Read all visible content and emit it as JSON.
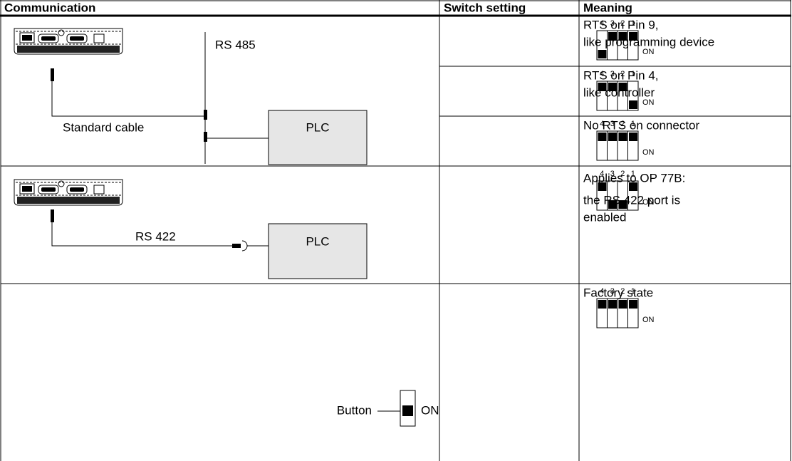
{
  "header": [
    "Communication",
    "Switch setting",
    "Meaning"
  ],
  "diagrams": [
    {
      "bus": "RS 485",
      "cable": "Standard cable",
      "plc": "PLC"
    },
    {
      "cable": "RS 422",
      "plc": "PLC"
    },
    {
      "button": "Button",
      "on": "ON"
    }
  ],
  "rows": [
    {
      "switch": {
        "numbers": [
          "4",
          "3",
          "2",
          "1"
        ],
        "on": "ON"
      },
      "meaning": [
        "RTS on Pin 9,",
        "like programming device"
      ]
    },
    {
      "switch": {
        "numbers": [
          "4",
          "3",
          "2",
          "1"
        ],
        "on": "ON"
      },
      "meaning": [
        "RTS on Pin 4,",
        "like controller"
      ]
    },
    {
      "switch": {
        "numbers": [
          "4",
          "3",
          "2",
          "1"
        ],
        "on": "ON"
      },
      "meaning": [
        "No RTS on connector"
      ]
    },
    {
      "switch": {
        "numbers": [
          "4",
          "3",
          "2",
          "1"
        ],
        "on": "ON"
      },
      "meaning": [
        "Applies to OP 77B:",
        "the RS 422 port is",
        "enabled"
      ]
    },
    {
      "switch": {
        "numbers": [
          "4",
          "3",
          "2",
          "1"
        ],
        "on": "ON"
      },
      "meaning": [
        "Factory state"
      ]
    }
  ]
}
